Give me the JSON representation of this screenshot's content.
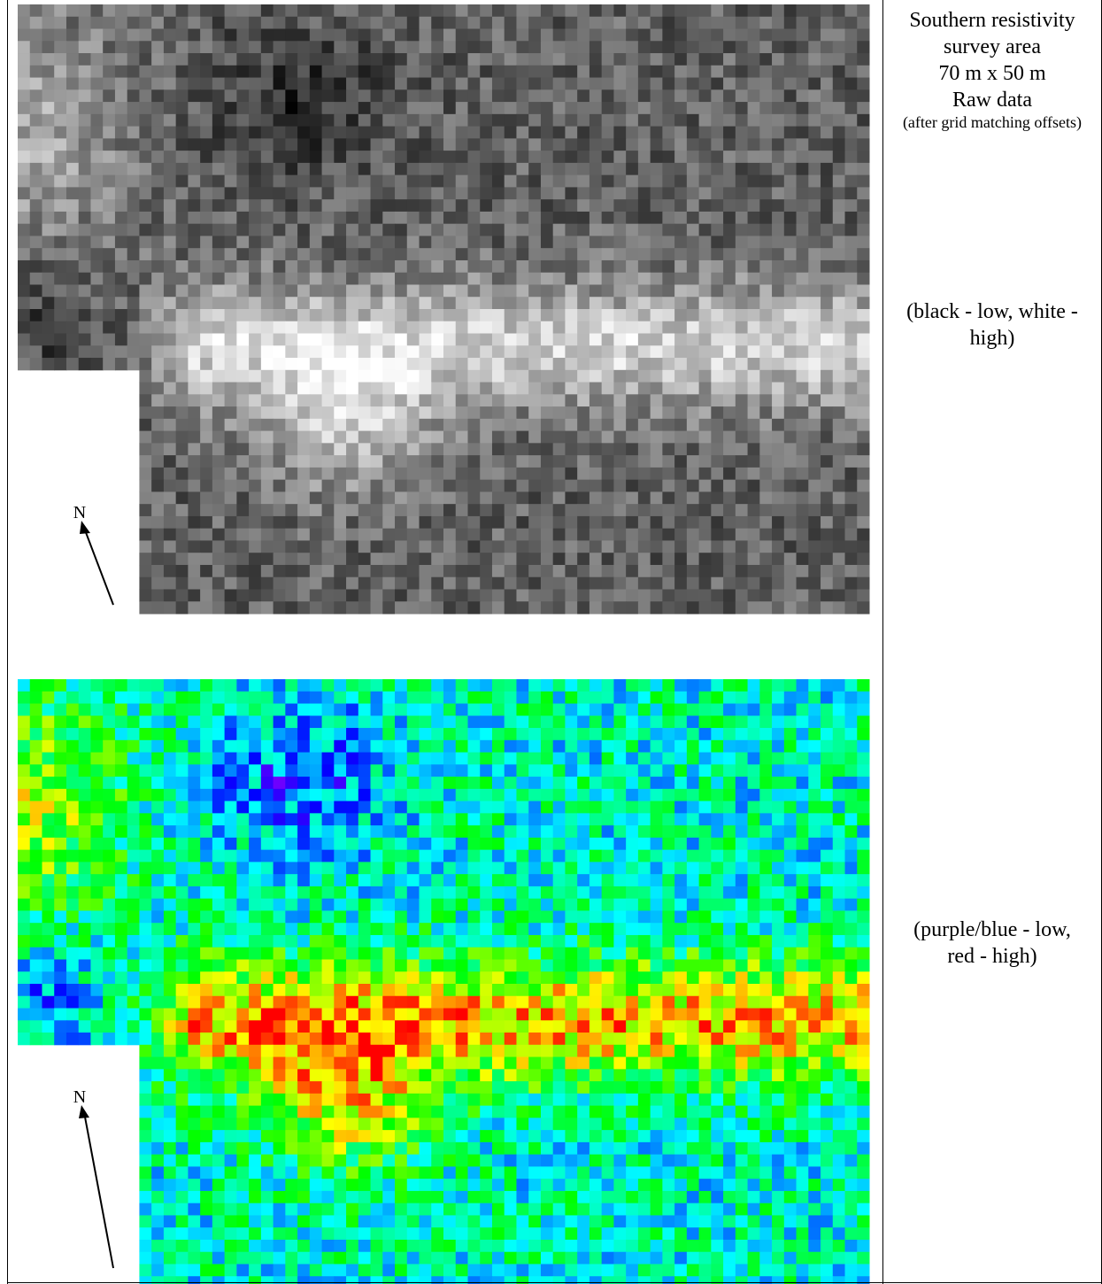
{
  "caption": {
    "title": "Southern resistivity survey area",
    "dimensions": "70 m x 50 m",
    "label": "Raw data",
    "note": "(after grid matching offsets)"
  },
  "grayscale_legend": "(black - low, white - high)",
  "color_legend": "(purple/blue - low, red - high)",
  "north_label": "N"
}
